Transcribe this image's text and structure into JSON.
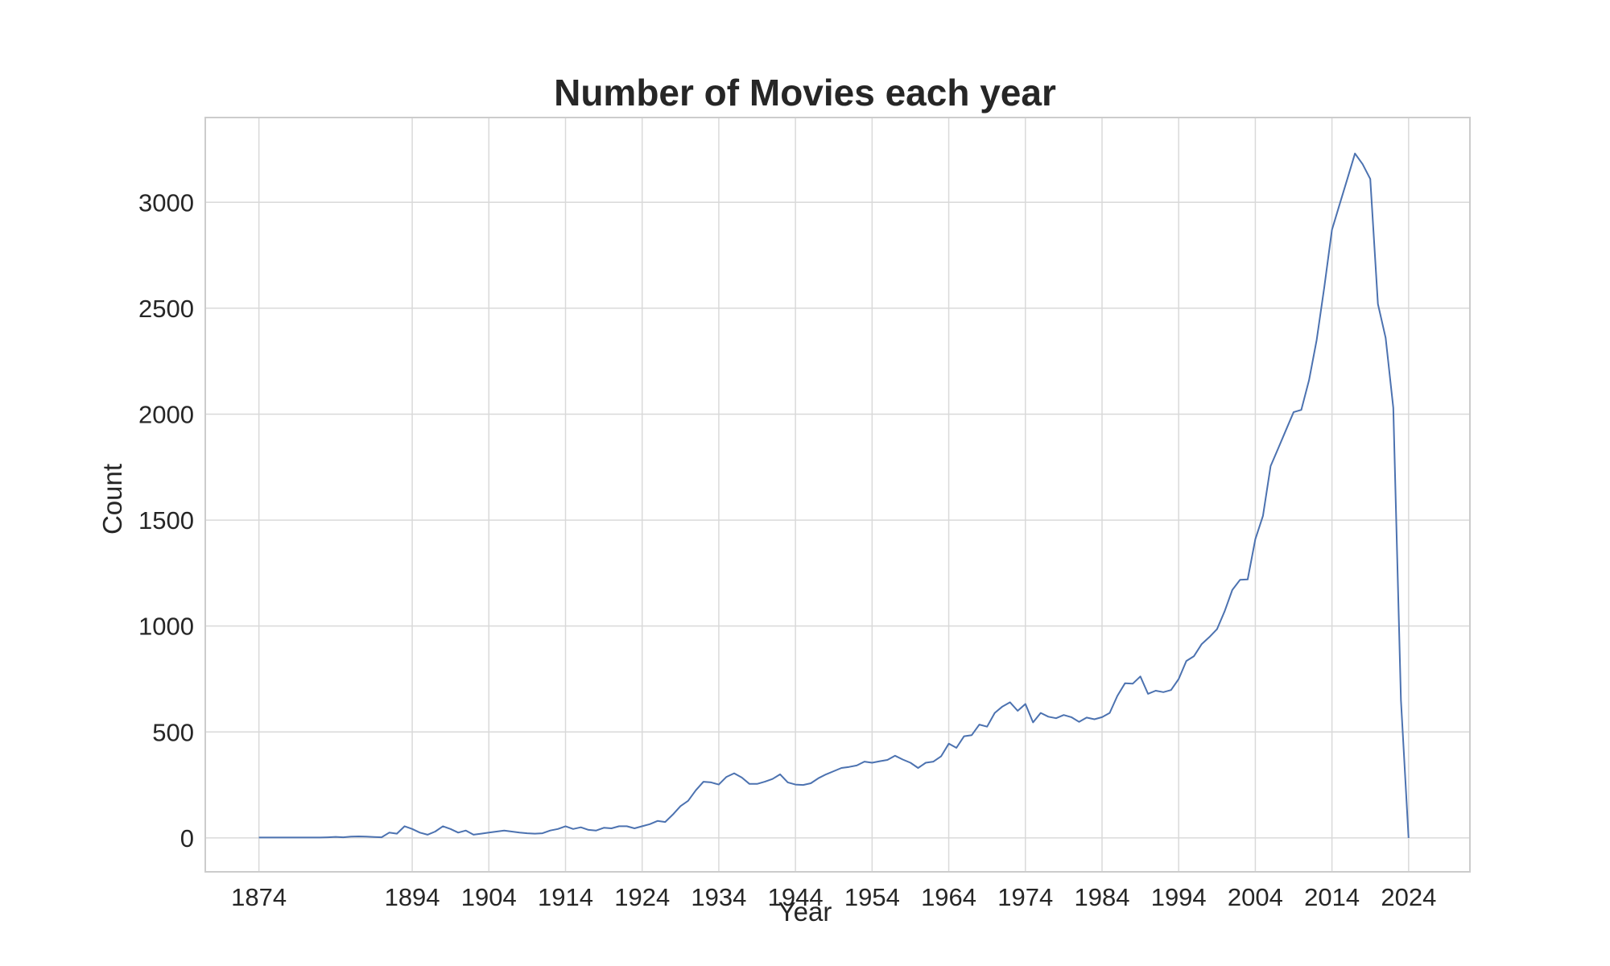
{
  "chart_data": {
    "type": "line",
    "title": "Number of Movies each year",
    "xlabel": "Year",
    "ylabel": "Count",
    "xlim": [
      1867,
      2032
    ],
    "ylim": [
      -160,
      3400
    ],
    "xticks": [
      1874,
      1894,
      1904,
      1914,
      1924,
      1934,
      1944,
      1954,
      1964,
      1974,
      1984,
      1994,
      2004,
      2014,
      2024
    ],
    "yticks": [
      0,
      500,
      1000,
      1500,
      2000,
      2500,
      3000
    ],
    "grid": true,
    "legend": false,
    "colors": {
      "line": "#4c72b0",
      "grid": "#d9d9d9",
      "frame": "#cccccc"
    },
    "series": [
      {
        "x": [
          1874,
          1875,
          1876,
          1877,
          1878,
          1879,
          1880,
          1881,
          1882,
          1883,
          1884,
          1885,
          1886,
          1887,
          1888,
          1889,
          1890,
          1891,
          1892,
          1893,
          1894,
          1895,
          1896,
          1897,
          1898,
          1899,
          1900,
          1901,
          1902,
          1903,
          1904,
          1905,
          1906,
          1907,
          1908,
          1909,
          1910,
          1911,
          1912,
          1913,
          1914,
          1915,
          1916,
          1917,
          1918,
          1919,
          1920,
          1921,
          1922,
          1923,
          1924,
          1925,
          1926,
          1927,
          1928,
          1929,
          1930,
          1931,
          1932,
          1933,
          1934,
          1935,
          1936,
          1937,
          1938,
          1939,
          1940,
          1941,
          1942,
          1943,
          1944,
          1945,
          1946,
          1947,
          1948,
          1949,
          1950,
          1951,
          1952,
          1953,
          1954,
          1955,
          1956,
          1957,
          1958,
          1959,
          1960,
          1961,
          1962,
          1963,
          1964,
          1965,
          1966,
          1967,
          1968,
          1969,
          1970,
          1971,
          1972,
          1973,
          1974,
          1975,
          1976,
          1977,
          1978,
          1979,
          1980,
          1981,
          1982,
          1983,
          1984,
          1985,
          1986,
          1987,
          1988,
          1989,
          1990,
          1991,
          1992,
          1993,
          1994,
          1995,
          1996,
          1997,
          1998,
          1999,
          2000,
          2001,
          2002,
          2003,
          2004,
          2005,
          2006,
          2007,
          2008,
          2009,
          2010,
          2011,
          2012,
          2013,
          2014,
          2015,
          2016,
          2017,
          2018,
          2019,
          2020,
          2021,
          2022,
          2023,
          2024
        ],
        "y": [
          2,
          2,
          2,
          2,
          2,
          2,
          2,
          2,
          2,
          3,
          5,
          3,
          6,
          7,
          6,
          4,
          3,
          25,
          20,
          55,
          42,
          25,
          15,
          30,
          55,
          42,
          25,
          35,
          15,
          20,
          25,
          30,
          35,
          30,
          25,
          22,
          20,
          22,
          35,
          42,
          55,
          42,
          50,
          38,
          35,
          48,
          45,
          55,
          55,
          45,
          55,
          65,
          80,
          75,
          110,
          150,
          175,
          225,
          265,
          262,
          252,
          288,
          305,
          285,
          255,
          255,
          265,
          278,
          300,
          262,
          252,
          250,
          258,
          282,
          300,
          315,
          330,
          335,
          342,
          360,
          355,
          362,
          368,
          388,
          370,
          355,
          330,
          355,
          360,
          385,
          445,
          425,
          480,
          485,
          535,
          525,
          590,
          620,
          640,
          600,
          632,
          545,
          590,
          572,
          565,
          580,
          570,
          548,
          568,
          560,
          570,
          590,
          670,
          730,
          728,
          762,
          680,
          695,
          688,
          698,
          750,
          835,
          858,
          915,
          948,
          985,
          1070,
          1170,
          1218,
          1220,
          1410,
          1520,
          1755,
          1840,
          1925,
          2010,
          2020,
          2160,
          2350,
          2600,
          2870,
          2990,
          3110,
          3230,
          3180,
          3110,
          2520,
          2360,
          2030,
          650,
          0
        ]
      }
    ]
  }
}
